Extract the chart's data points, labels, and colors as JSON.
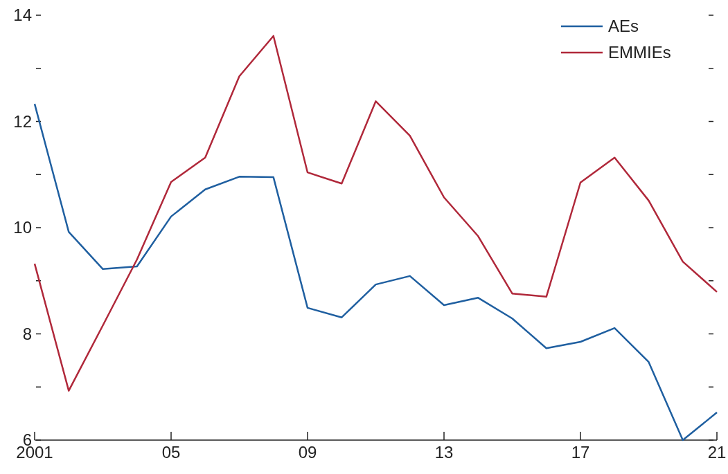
{
  "chart_data": {
    "type": "line",
    "x": [
      2001,
      2002,
      2003,
      2004,
      2005,
      2006,
      2007,
      2008,
      2009,
      2010,
      2011,
      2012,
      2013,
      2014,
      2015,
      2016,
      2017,
      2018,
      2019,
      2020,
      2021
    ],
    "series": [
      {
        "name": "AEs",
        "color": "#1f5fa0",
        "values": [
          12.33,
          9.92,
          9.22,
          9.27,
          10.21,
          10.72,
          10.96,
          10.95,
          8.49,
          8.31,
          8.93,
          9.09,
          8.54,
          8.68,
          8.29,
          7.73,
          7.85,
          8.11,
          7.47,
          6.0,
          6.52
        ]
      },
      {
        "name": "EMMIEs",
        "color": "#b0283a",
        "values": [
          9.32,
          6.93,
          8.16,
          9.4,
          10.86,
          11.32,
          12.85,
          13.61,
          11.04,
          10.83,
          12.38,
          11.73,
          10.57,
          9.84,
          8.76,
          8.7,
          10.85,
          11.32,
          10.51,
          9.36,
          8.79
        ]
      }
    ],
    "xlim": [
      2001,
      2021
    ],
    "xticks": [
      {
        "value": 2001,
        "label": "2001"
      },
      {
        "value": 2005,
        "label": "05"
      },
      {
        "value": 2009,
        "label": "09"
      },
      {
        "value": 2013,
        "label": "13"
      },
      {
        "value": 2017,
        "label": "17"
      },
      {
        "value": 2021,
        "label": "21"
      }
    ],
    "ylim": [
      6,
      14
    ],
    "yticks": [
      6,
      {
        "value": 7,
        "label": null
      },
      8,
      {
        "value": 9,
        "label": null
      },
      10,
      {
        "value": 11,
        "label": null
      },
      12,
      {
        "value": 13,
        "label": null
      },
      14
    ],
    "legend": "top right",
    "line_style": "solid",
    "marker": "none"
  }
}
